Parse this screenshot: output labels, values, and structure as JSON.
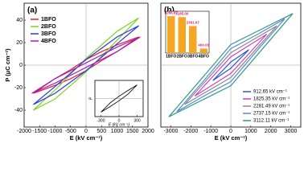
{
  "chart_data": [
    {
      "type": "line",
      "title": "(a)",
      "x_label": "E (kV cm⁻¹)",
      "y_label": "P (μC cm⁻²)",
      "xlim": [
        -2000,
        2000
      ],
      "ylim": [
        -55,
        55
      ],
      "xticks": [
        -2000,
        -1500,
        -1000,
        -500,
        0,
        500,
        1000,
        1500,
        2000
      ],
      "yticks": [
        -40,
        -20,
        0,
        20,
        40
      ],
      "legend": "upper left",
      "series": [
        {
          "name": "1BFO",
          "color": "#e8202a",
          "x": [
            1700,
            1000,
            500,
            0,
            -500,
            -1000,
            -1700,
            -1000,
            -500,
            0,
            500,
            1000,
            1700
          ],
          "values": [
            25,
            18,
            12,
            5,
            -4,
            -12,
            -25,
            -18,
            -12,
            -5,
            4,
            12,
            25
          ]
        },
        {
          "name": "2BFO",
          "color": "#7dd31c",
          "x": [
            1700,
            1000,
            500,
            0,
            -500,
            -1000,
            -1700,
            -1000,
            -500,
            0,
            500,
            1000,
            1700
          ],
          "values": [
            42,
            30,
            18,
            6,
            -8,
            -22,
            -40,
            -30,
            -18,
            -6,
            8,
            22,
            42
          ]
        },
        {
          "name": "3BFO",
          "color": "#2b37e0",
          "x": [
            1700,
            1000,
            500,
            0,
            -500,
            -1000,
            -1700,
            -1000,
            -500,
            0,
            500,
            1000,
            1700
          ],
          "values": [
            35,
            25,
            15,
            5,
            -7,
            -19,
            -35,
            -25,
            -15,
            -5,
            7,
            19,
            35
          ]
        },
        {
          "name": "4BFO",
          "color": "#a020c0",
          "x": [
            1750,
            1000,
            500,
            0,
            -500,
            -1000,
            -1750,
            -1000,
            -500,
            0,
            500,
            1000,
            1750
          ],
          "values": [
            25,
            16,
            9,
            2,
            -5,
            -12,
            -25,
            -16,
            -9,
            -2,
            5,
            12,
            25
          ]
        }
      ],
      "inset": {
        "type": "line",
        "x_label": "E (kV cm⁻¹)",
        "y_label": "P",
        "xlim": [
          -400,
          400
        ],
        "ylim": [
          -4,
          4
        ],
        "xticks": [
          -300,
          0,
          300
        ],
        "yticks": [],
        "series": [
          {
            "color": "#000000",
            "x": [
              300,
              150,
              0,
              -150,
              -300,
              -150,
              0,
              150,
              300
            ],
            "values": [
              3,
              1.8,
              0.5,
              -1,
              -3,
              -1.8,
              -0.5,
              1,
              3
            ]
          }
        ]
      }
    },
    {
      "type": "line",
      "title": "(b)",
      "x_label": "E (kV cm⁻¹)",
      "xlim": [
        -3500,
        3500
      ],
      "ylim": [
        -60,
        60
      ],
      "xticks": [
        -3000,
        -2000,
        -1000,
        0,
        1000,
        2000,
        3000
      ],
      "yticks": [],
      "legend": "lower right",
      "series": [
        {
          "name": "912.65 kV cm⁻¹",
          "color": "#2a5bd0",
          "x": [
            900,
            450,
            0,
            -450,
            -900,
            -450,
            0,
            450,
            900
          ],
          "values": [
            15,
            9,
            3,
            -6,
            -15,
            -9,
            -3,
            6,
            15
          ]
        },
        {
          "name": "1825.35 kV cm⁻¹",
          "color": "#d040c0",
          "x": [
            1800,
            900,
            0,
            -900,
            -1800,
            -900,
            0,
            900,
            1800
          ],
          "values": [
            30,
            19,
            8,
            -11,
            -30,
            -19,
            -8,
            11,
            30
          ]
        },
        {
          "name": "2281.49 kV cm⁻¹",
          "color": "#8a8a8a",
          "x": [
            2300,
            1150,
            0,
            -1150,
            -2300,
            -1150,
            0,
            1150,
            2300
          ],
          "values": [
            38,
            25,
            12,
            -13,
            -38,
            -25,
            -12,
            13,
            38
          ]
        },
        {
          "name": "2737.15 kV cm⁻¹",
          "color": "#5a8ad0",
          "x": [
            2700,
            1350,
            0,
            -1350,
            -2700,
            -1350,
            0,
            1350,
            2700
          ],
          "values": [
            45,
            30,
            16,
            -15,
            -45,
            -30,
            -16,
            15,
            45
          ]
        },
        {
          "name": "3112.11 kV cm⁻¹",
          "color": "#2f9a8a",
          "x": [
            3100,
            1550,
            0,
            -1550,
            -3100,
            -1550,
            0,
            1550,
            3100
          ],
          "values": [
            50,
            35,
            20,
            -15,
            -50,
            -35,
            -20,
            15,
            50
          ]
        }
      ],
      "inset": {
        "type": "bar",
        "categories": [
          "1BFO",
          "2BFO",
          "3BFO",
          "4BFO"
        ],
        "values": [
          3266.67,
          3185.0,
          2391.67,
          400.0
        ],
        "value_labels": [
          "3266.67",
          "3185.00",
          "2391.67",
          "400.00"
        ],
        "color": "#f5a623",
        "label_color": "#e0206a",
        "ylim": [
          0,
          3700
        ],
        "yticks": []
      }
    }
  ]
}
